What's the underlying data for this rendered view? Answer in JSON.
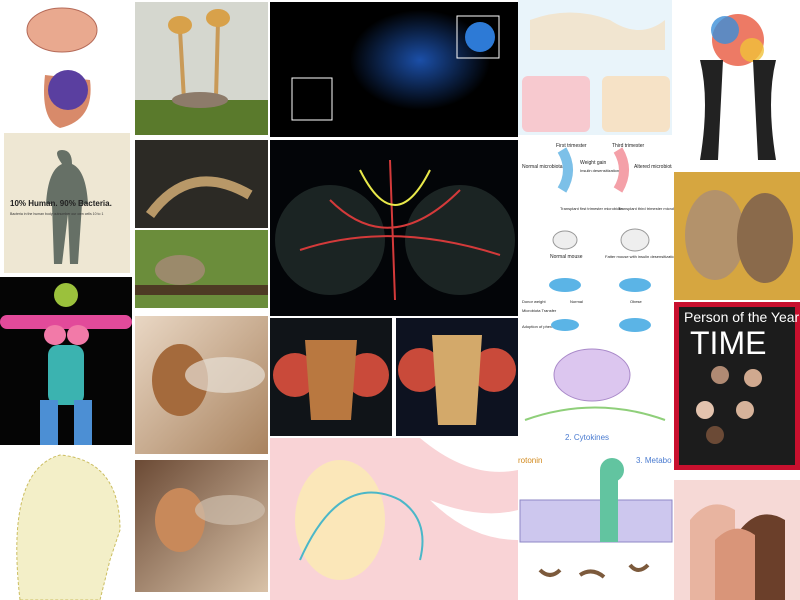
{
  "collage": {
    "bacteria_poster": {
      "headline": "10% Human. 90% Bacteria.",
      "subline": "Bacteria in the human body outnumber our own cells 10 to 1"
    },
    "time_cover": {
      "masthead_small": "Person of the Year",
      "masthead": "TIME"
    },
    "pregnancy_diagram": {
      "first": "First trimester",
      "third": "Third trimester",
      "normal_microbiota": "Normal microbiota",
      "altered_microbiota": "Altered microbiota",
      "weight_gain": "Weight gain",
      "insulin": "Insulin desensitization",
      "transplant_first": "Transplant first trimester microbiota",
      "transplant_third": "Transplant third trimester microbiota",
      "normal_mouse": "Normal mouse",
      "fatter_mouse": "Fatter mouse with insulin desensitization",
      "donor_weight": "Donor weight",
      "normal": "Normal",
      "obese": "Obese",
      "transfer": "Microbiota Transfer",
      "adoption": "Adoption of phenotype"
    },
    "gut_brain_diagram": {
      "cytokines": "2. Cytokines",
      "metabolites": "3. Metabo",
      "serotonin": "rotonin"
    }
  }
}
